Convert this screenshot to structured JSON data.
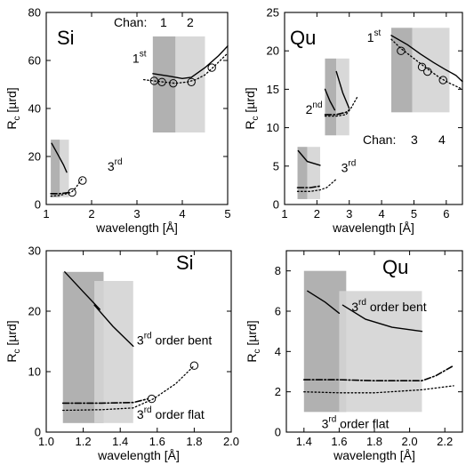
{
  "chart_data": [
    {
      "type": "line",
      "title": "Si",
      "xlabel": "wavelength [Å]",
      "ylabel": "Rc [µrd]",
      "xlim": [
        1,
        5
      ],
      "ylim": [
        0,
        80
      ],
      "xticks": [
        "1",
        "2",
        "3",
        "4",
        "5"
      ],
      "yticks": [
        "0",
        "20",
        "40",
        "60",
        "80"
      ],
      "grid": false,
      "chan_label": "Chan:",
      "chan_numbers": [
        "1",
        "2"
      ],
      "channels": [
        {
          "name": "1",
          "x_range": [
            3.35,
            3.85
          ],
          "y_range": [
            30,
            70
          ],
          "shade": "#a8a8a8"
        },
        {
          "name": "2",
          "x_range": [
            3.85,
            4.5
          ],
          "y_range": [
            30,
            70
          ],
          "shade": "#d4d4d4"
        },
        {
          "x_range": [
            1.1,
            1.3
          ],
          "y_range": [
            3,
            27
          ],
          "shade": "#a8a8a8"
        },
        {
          "x_range": [
            1.3,
            1.5
          ],
          "y_range": [
            3,
            27
          ],
          "shade": "#d4d4d4"
        }
      ],
      "series": [
        {
          "style": "solid",
          "x": [
            3.35,
            3.7,
            4.0,
            4.2,
            4.5,
            4.8,
            5.0
          ],
          "y": [
            54.5,
            53.5,
            52.5,
            53,
            57,
            62,
            66
          ]
        },
        {
          "style": "dotted",
          "x": [
            3.15,
            3.35,
            3.6,
            3.85,
            4.1,
            4.3,
            4.5,
            4.7,
            5.0
          ],
          "y": [
            52,
            51.5,
            51,
            50.5,
            51,
            52,
            54,
            57.5,
            63
          ]
        },
        {
          "style": "solid",
          "x": [
            1.12,
            1.25,
            1.38,
            1.45
          ],
          "y": [
            25.5,
            21,
            16.5,
            13.5
          ]
        },
        {
          "style": "dashdot",
          "x": [
            1.1,
            1.3,
            1.5
          ],
          "y": [
            4.5,
            4.5,
            5
          ]
        },
        {
          "style": "dotted",
          "x": [
            1.1,
            1.3,
            1.55,
            1.65,
            1.8
          ],
          "y": [
            3.5,
            3.8,
            5,
            7,
            11
          ]
        }
      ],
      "markers": [
        {
          "x": 3.38,
          "y": 51.5
        },
        {
          "x": 3.55,
          "y": 51
        },
        {
          "x": 3.8,
          "y": 50.5
        },
        {
          "x": 4.2,
          "y": 51
        },
        {
          "x": 4.65,
          "y": 57
        },
        {
          "x": 1.57,
          "y": 5
        },
        {
          "x": 1.8,
          "y": 10
        }
      ],
      "annotations": [
        {
          "text": "1",
          "sup": "st",
          "x": 2.9,
          "y": 59
        },
        {
          "text": "3",
          "sup": "rd",
          "x": 2.35,
          "y": 14
        }
      ]
    },
    {
      "type": "line",
      "title": "Qu",
      "xlabel": "wavelength [Å]",
      "ylabel": "Rc [µrd]",
      "xlim": [
        1,
        6.5
      ],
      "ylim": [
        0,
        25
      ],
      "xticks": [
        "1",
        "2",
        "3",
        "4",
        "5",
        "6"
      ],
      "yticks": [
        "0",
        "5",
        "10",
        "15",
        "20",
        "25"
      ],
      "grid": false,
      "chan_label": "Chan:",
      "chan_numbers": [
        "3",
        "4"
      ],
      "channels": [
        {
          "name": "3",
          "x_range": [
            4.3,
            4.95
          ],
          "y_range": [
            12,
            23
          ],
          "shade": "#a8a8a8"
        },
        {
          "name": "4",
          "x_range": [
            4.95,
            6.1
          ],
          "y_range": [
            12,
            23
          ],
          "shade": "#d4d4d4"
        },
        {
          "x_range": [
            2.25,
            2.6
          ],
          "y_range": [
            9,
            19
          ],
          "shade": "#a8a8a8"
        },
        {
          "x_range": [
            2.6,
            3.0
          ],
          "y_range": [
            9,
            19
          ],
          "shade": "#d4d4d4"
        },
        {
          "x_range": [
            1.4,
            1.7
          ],
          "y_range": [
            0.7,
            7.5
          ],
          "shade": "#a8a8a8"
        },
        {
          "x_range": [
            1.7,
            2.1
          ],
          "y_range": [
            0.7,
            7.5
          ],
          "shade": "#d4d4d4"
        }
      ],
      "series": [
        {
          "style": "solid",
          "x": [
            4.3,
            4.8,
            5.2,
            5.6,
            6.0,
            6.3,
            6.5
          ],
          "y": [
            22,
            20.8,
            19.6,
            18.5,
            17.5,
            16.8,
            16
          ]
        },
        {
          "style": "dotted",
          "x": [
            4.3,
            4.6,
            5.0,
            5.4,
            5.8,
            6.1,
            6.5
          ],
          "y": [
            21.5,
            20.3,
            19,
            17.7,
            16.5,
            15.8,
            15
          ]
        },
        {
          "style": "solid",
          "x": [
            2.25,
            2.4,
            2.55
          ],
          "y": [
            15,
            13.5,
            12.3
          ]
        },
        {
          "style": "solid",
          "x": [
            2.6,
            2.8,
            3.0
          ],
          "y": [
            17.3,
            14.5,
            12.5
          ]
        },
        {
          "style": "dashdot",
          "x": [
            2.25,
            2.6,
            2.9,
            3.0
          ],
          "y": [
            11.7,
            11.7,
            12,
            12.3
          ]
        },
        {
          "style": "dotted",
          "x": [
            2.25,
            2.6,
            2.9,
            3.05,
            3.25
          ],
          "y": [
            11.5,
            11.5,
            11.7,
            12.5,
            14
          ]
        },
        {
          "style": "solid",
          "x": [
            1.42,
            1.7,
            2.1
          ],
          "y": [
            7,
            5.6,
            5.1
          ]
        },
        {
          "style": "dashdot",
          "x": [
            1.4,
            1.8,
            2.1
          ],
          "y": [
            2.2,
            2.2,
            2.4
          ]
        },
        {
          "style": "dotted",
          "x": [
            1.4,
            1.8,
            2.1,
            2.3,
            2.6
          ],
          "y": [
            1.7,
            1.7,
            1.9,
            2.2,
            3.3
          ]
        }
      ],
      "markers": [
        {
          "x": 4.6,
          "y": 20
        },
        {
          "x": 5.25,
          "y": 17.9
        },
        {
          "x": 5.42,
          "y": 17.3
        },
        {
          "x": 5.9,
          "y": 16.2
        }
      ],
      "annotations": [
        {
          "text": "1",
          "sup": "st",
          "x": 3.55,
          "y": 21.2
        },
        {
          "text": "2",
          "sup": "nd",
          "x": 1.65,
          "y": 11.8
        },
        {
          "text": "3",
          "sup": "rd",
          "x": 2.75,
          "y": 4.2
        }
      ]
    },
    {
      "type": "line",
      "title": "Si",
      "xlabel": "wavelength [Å]",
      "ylabel": "Rc [µrd]",
      "xlim": [
        1.0,
        2.0
      ],
      "ylim": [
        0,
        30
      ],
      "xticks": [
        "1.0",
        "1.2",
        "1.4",
        "1.6",
        "1.8",
        "2.0"
      ],
      "yticks": [
        "0",
        "10",
        "20",
        "30"
      ],
      "grid": false,
      "channels": [
        {
          "x_range": [
            1.09,
            1.31
          ],
          "y_range": [
            1.5,
            26.5
          ],
          "shade": "#a8a8a8"
        },
        {
          "x_range": [
            1.26,
            1.47
          ],
          "y_range": [
            1.5,
            25
          ],
          "shade": "#d4d4d4"
        }
      ],
      "series": [
        {
          "style": "solid",
          "x": [
            1.1,
            1.2,
            1.29
          ],
          "y": [
            26.5,
            23.2,
            20.3
          ]
        },
        {
          "style": "solid",
          "x": [
            1.26,
            1.36,
            1.47
          ],
          "y": [
            21,
            17.5,
            14.2
          ]
        },
        {
          "style": "dashdot",
          "x": [
            1.09,
            1.3,
            1.47,
            1.55
          ],
          "y": [
            4.8,
            4.8,
            4.9,
            5.5
          ]
        },
        {
          "style": "dotted",
          "x": [
            1.09,
            1.3,
            1.47,
            1.58,
            1.7,
            1.8
          ],
          "y": [
            3.6,
            3.7,
            4.0,
            5.5,
            8,
            11
          ]
        }
      ],
      "markers": [
        {
          "x": 1.57,
          "y": 5.5
        },
        {
          "x": 1.8,
          "y": 11
        }
      ],
      "annotations": [
        {
          "text": "3",
          "sup": "rd",
          "label": "order bent",
          "x": 1.49,
          "y": 14.5
        },
        {
          "text": "3",
          "sup": "rd",
          "label": "order flat",
          "x": 1.49,
          "y": 2.2
        }
      ]
    },
    {
      "type": "line",
      "title": "Qu",
      "xlabel": "wavelength [Å]",
      "ylabel": "Rc [µrd]",
      "xlim": [
        1.3,
        2.3
      ],
      "ylim": [
        0,
        9
      ],
      "xticks": [
        "1.4",
        "1.6",
        "1.8",
        "2.0",
        "2.2"
      ],
      "yticks": [
        "0",
        "2",
        "4",
        "6",
        "8"
      ],
      "grid": false,
      "channels": [
        {
          "x_range": [
            1.4,
            1.64
          ],
          "y_range": [
            1,
            8
          ],
          "shade": "#a8a8a8"
        },
        {
          "x_range": [
            1.6,
            2.07
          ],
          "y_range": [
            1,
            7
          ],
          "shade": "#d4d4d4"
        }
      ],
      "series": [
        {
          "style": "solid",
          "x": [
            1.42,
            1.52,
            1.6
          ],
          "y": [
            7,
            6.45,
            5.9
          ]
        },
        {
          "style": "solid",
          "x": [
            1.62,
            1.75,
            1.9,
            2.07
          ],
          "y": [
            6.3,
            5.6,
            5.2,
            5.0
          ]
        },
        {
          "style": "dashdot",
          "x": [
            1.4,
            1.6,
            1.8,
            2.07,
            2.15,
            2.25
          ],
          "y": [
            2.6,
            2.6,
            2.55,
            2.55,
            2.8,
            3.3
          ]
        },
        {
          "style": "dotted",
          "x": [
            1.4,
            1.6,
            1.8,
            2.07,
            2.25
          ],
          "y": [
            2.0,
            1.95,
            1.95,
            2.1,
            2.3
          ]
        }
      ],
      "markers": [],
      "annotations": [
        {
          "text": "3",
          "sup": "rd",
          "label": "order bent",
          "x": 1.67,
          "y": 6.0
        },
        {
          "text": "3",
          "sup": "rd",
          "label": "order flat",
          "x": 1.5,
          "y": 0.2
        }
      ]
    }
  ]
}
